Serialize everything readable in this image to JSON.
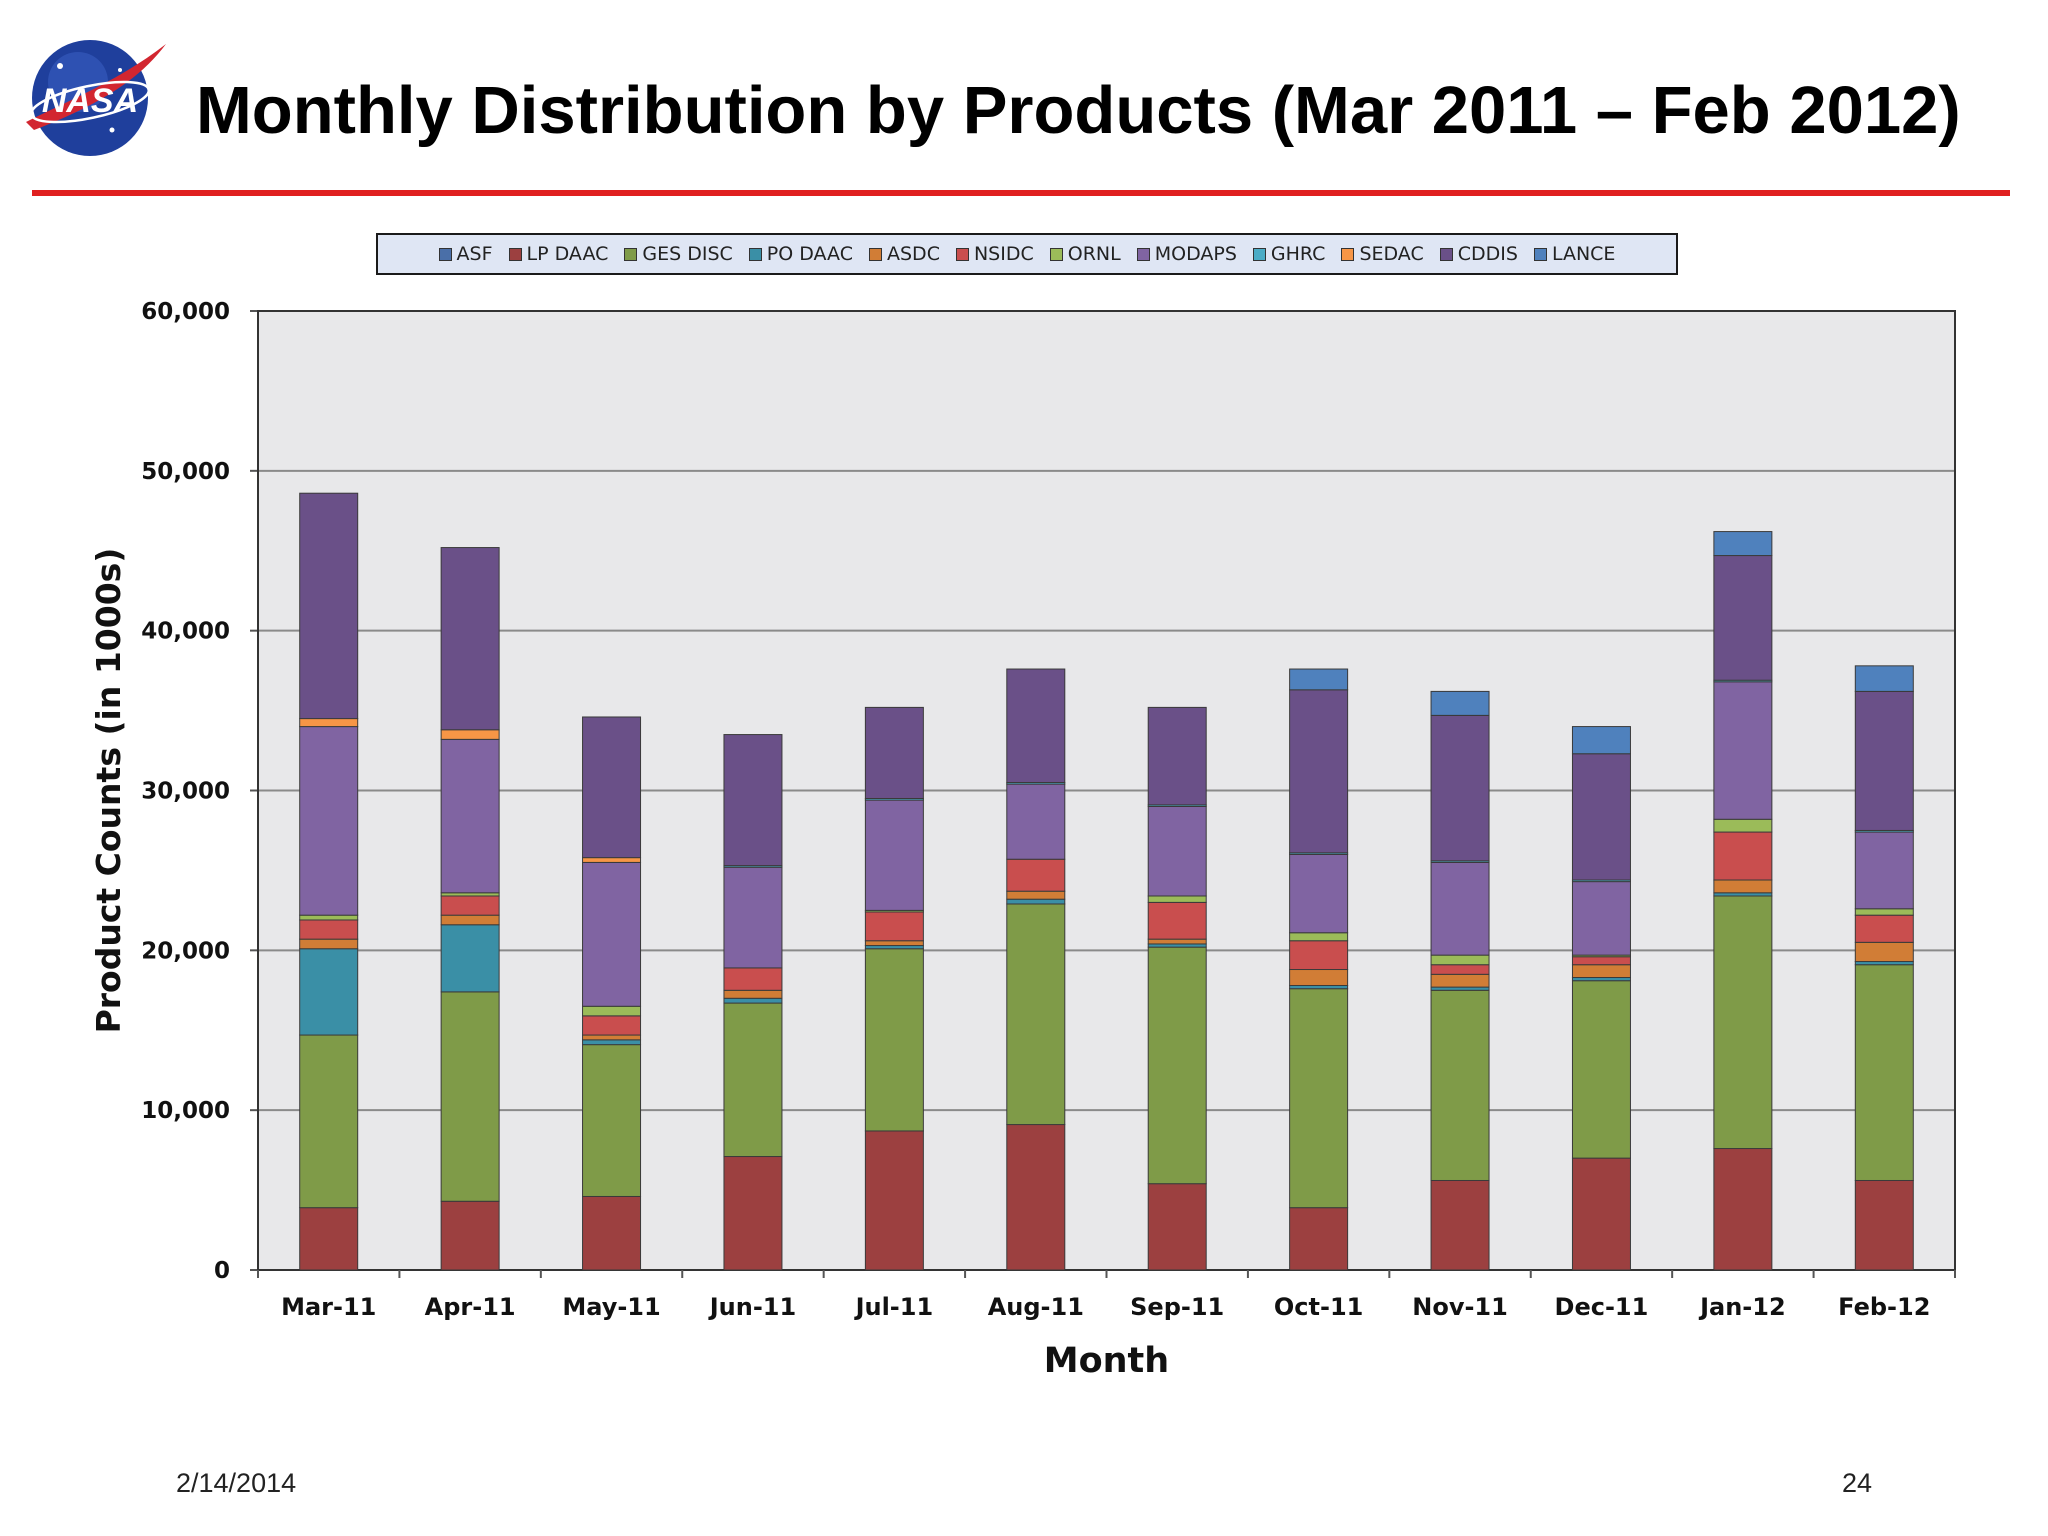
{
  "slide": {
    "logo_text": "NASA",
    "title": "Monthly Distribution by Products (Mar 2011 – Feb 2012)",
    "date": "2/14/2014",
    "page_number": "24"
  },
  "colors": {
    "title_rule": "#e02020",
    "plot_background": "#e8e8ea"
  },
  "chart_data": {
    "type": "bar",
    "stacked": true,
    "title": "",
    "xlabel": "Month",
    "ylabel": "Product Counts (in 1000s)",
    "ylim": [
      0,
      60000
    ],
    "yticks": [
      0,
      10000,
      20000,
      30000,
      40000,
      50000,
      60000
    ],
    "ytick_labels": [
      "0",
      "10,000",
      "20,000",
      "30,000",
      "40,000",
      "50,000",
      "60,000"
    ],
    "grid": true,
    "legend_position": "top",
    "categories": [
      "Mar-11",
      "Apr-11",
      "May-11",
      "Jun-11",
      "Jul-11",
      "Aug-11",
      "Sep-11",
      "Oct-11",
      "Nov-11",
      "Dec-11",
      "Jan-12",
      "Feb-12"
    ],
    "series": [
      {
        "name": "ASF",
        "color": "#4a6fa8",
        "values": [
          0,
          0,
          0,
          0,
          0,
          0,
          0,
          0,
          0,
          0,
          0,
          0
        ]
      },
      {
        "name": "LP DAAC",
        "color": "#9c4040",
        "values": [
          3900,
          4300,
          4600,
          7100,
          8700,
          9100,
          5400,
          3900,
          5600,
          7000,
          7600,
          5600
        ]
      },
      {
        "name": "GES DISC",
        "color": "#7f9b48",
        "values": [
          10800,
          13100,
          9500,
          9600,
          11400,
          13800,
          14800,
          13700,
          11900,
          11100,
          15800,
          13500
        ]
      },
      {
        "name": "PO DAAC",
        "color": "#3a8fa6",
        "values": [
          5400,
          4200,
          300,
          300,
          200,
          300,
          200,
          200,
          200,
          200,
          200,
          200
        ]
      },
      {
        "name": "ASDC",
        "color": "#d17d36",
        "values": [
          600,
          600,
          300,
          500,
          300,
          500,
          300,
          1000,
          800,
          800,
          800,
          1200
        ]
      },
      {
        "name": "NSIDC",
        "color": "#c94e4e",
        "values": [
          1200,
          1200,
          1200,
          1400,
          1800,
          2000,
          2300,
          1800,
          600,
          500,
          3000,
          1700
        ]
      },
      {
        "name": "ORNL",
        "color": "#9bbb59",
        "values": [
          300,
          200,
          600,
          0,
          100,
          0,
          400,
          500,
          600,
          100,
          800,
          400
        ]
      },
      {
        "name": "MODAPS",
        "color": "#8064a2",
        "values": [
          11800,
          9600,
          9000,
          6300,
          6900,
          4700,
          5600,
          4900,
          5800,
          4600,
          8600,
          4800
        ]
      },
      {
        "name": "GHRC",
        "color": "#4bacc6",
        "values": [
          0,
          0,
          0,
          100,
          100,
          100,
          100,
          100,
          100,
          100,
          100,
          100
        ]
      },
      {
        "name": "SEDAC",
        "color": "#f79646",
        "values": [
          500,
          600,
          300,
          0,
          0,
          0,
          0,
          0,
          0,
          0,
          0,
          0
        ]
      },
      {
        "name": "CDDIS",
        "color": "#6a5088",
        "values": [
          14100,
          11400,
          8800,
          8200,
          5700,
          7100,
          6100,
          10200,
          9100,
          7900,
          7800,
          8700
        ]
      },
      {
        "name": "LANCE",
        "color": "#4f81bd",
        "values": [
          0,
          0,
          0,
          0,
          0,
          0,
          0,
          1300,
          1500,
          1700,
          1500,
          1600
        ]
      }
    ]
  }
}
